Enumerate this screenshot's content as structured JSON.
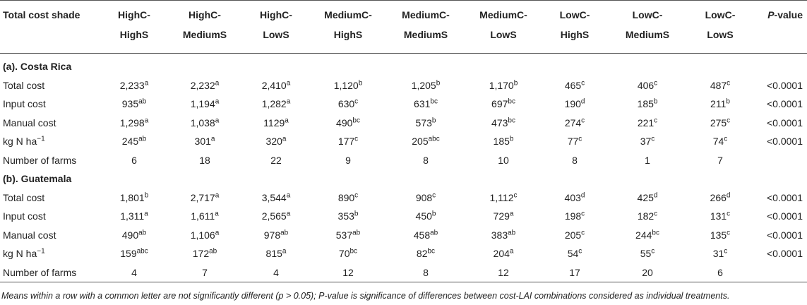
{
  "header": {
    "corner": "Total cost shade",
    "columns": [
      [
        "HighC-",
        "HighS"
      ],
      [
        "HighC-",
        "MediumS"
      ],
      [
        "HighC-",
        "LowS"
      ],
      [
        "MediumC-",
        "HighS"
      ],
      [
        "MediumC-",
        "MediumS"
      ],
      [
        "MediumC-",
        "LowS"
      ],
      [
        "LowC-",
        "HighS"
      ],
      [
        "LowC-",
        "MediumS"
      ],
      [
        "LowC-",
        "LowS"
      ]
    ],
    "pvalue": {
      "italic": "P",
      "text": "-value"
    }
  },
  "sections": [
    {
      "title": "(a). Costa Rica",
      "rows": [
        {
          "label": [
            "Total cost"
          ],
          "cells": [
            [
              "2,233",
              "a"
            ],
            [
              "2,232",
              "a"
            ],
            [
              "2,410",
              "a"
            ],
            [
              "1,120",
              "b"
            ],
            [
              "1,205",
              "b"
            ],
            [
              "1,170",
              "b"
            ],
            [
              "465",
              "c"
            ],
            [
              "406",
              "c"
            ],
            [
              "487",
              "c"
            ]
          ],
          "p": "<0.0001"
        },
        {
          "label": [
            "Input cost"
          ],
          "cells": [
            [
              "935",
              "ab"
            ],
            [
              "1,194",
              "a"
            ],
            [
              "1,282",
              "a"
            ],
            [
              "630",
              "c"
            ],
            [
              "631",
              "bc"
            ],
            [
              "697",
              "bc"
            ],
            [
              "190",
              "d"
            ],
            [
              "185",
              "b"
            ],
            [
              "211",
              "b"
            ]
          ],
          "p": "<0.0001"
        },
        {
          "label": [
            "Manual cost"
          ],
          "cells": [
            [
              "1,298",
              "a"
            ],
            [
              "1,038",
              "a"
            ],
            [
              "1129",
              "a"
            ],
            [
              "490",
              "bc"
            ],
            [
              "573",
              "b"
            ],
            [
              "473",
              "bc"
            ],
            [
              "274",
              "c"
            ],
            [
              "221",
              "c"
            ],
            [
              "275",
              "c"
            ]
          ],
          "p": "<0.0001"
        },
        {
          "label": [
            "kg N ha",
            "−1"
          ],
          "cells": [
            [
              "245",
              "ab"
            ],
            [
              "301",
              "a"
            ],
            [
              "320",
              "a"
            ],
            [
              "177",
              "c"
            ],
            [
              "205",
              "abc"
            ],
            [
              "185",
              "b"
            ],
            [
              "77",
              "c"
            ],
            [
              "37",
              "c"
            ],
            [
              "74",
              "c"
            ]
          ],
          "p": "<0.0001"
        },
        {
          "label": [
            "Number of farms"
          ],
          "cells": [
            [
              "6"
            ],
            [
              "18"
            ],
            [
              "22"
            ],
            [
              "9"
            ],
            [
              "8"
            ],
            [
              "10"
            ],
            [
              "8"
            ],
            [
              "1"
            ],
            [
              "7"
            ]
          ]
        }
      ]
    },
    {
      "title": "(b). Guatemala",
      "rows": [
        {
          "label": [
            "Total cost"
          ],
          "cells": [
            [
              "1,801",
              "b"
            ],
            [
              "2,717",
              "a"
            ],
            [
              "3,544",
              "a"
            ],
            [
              "890",
              "c"
            ],
            [
              "908",
              "c"
            ],
            [
              "1,112",
              "c"
            ],
            [
              "403",
              "d"
            ],
            [
              "425",
              "d"
            ],
            [
              "266",
              "d"
            ]
          ],
          "p": "<0.0001"
        },
        {
          "label": [
            "Input cost"
          ],
          "cells": [
            [
              "1,311",
              "a"
            ],
            [
              "1,611",
              "a"
            ],
            [
              "2,565",
              "a"
            ],
            [
              "353",
              "b"
            ],
            [
              "450",
              "b"
            ],
            [
              "729",
              "a"
            ],
            [
              "198",
              "c"
            ],
            [
              "182",
              "c"
            ],
            [
              "131",
              "c"
            ]
          ],
          "p": "<0.0001"
        },
        {
          "label": [
            "Manual cost"
          ],
          "cells": [
            [
              "490",
              "ab"
            ],
            [
              "1,106",
              "a"
            ],
            [
              "978",
              "ab"
            ],
            [
              "537",
              "ab"
            ],
            [
              "458",
              "ab"
            ],
            [
              "383",
              "ab"
            ],
            [
              "205",
              "c"
            ],
            [
              "244",
              "bc"
            ],
            [
              "135",
              "c"
            ]
          ],
          "p": "<0.0001"
        },
        {
          "label": [
            "kg N ha",
            "−1"
          ],
          "cells": [
            [
              "159",
              "abc"
            ],
            [
              "172",
              "ab"
            ],
            [
              "815",
              "a"
            ],
            [
              "70",
              "bc"
            ],
            [
              "82",
              "bc"
            ],
            [
              "204",
              "a"
            ],
            [
              "54",
              "c"
            ],
            [
              "55",
              "c"
            ],
            [
              "31",
              "c"
            ]
          ],
          "p": "<0.0001"
        },
        {
          "label": [
            "Number of farms"
          ],
          "cells": [
            [
              "4"
            ],
            [
              "7"
            ],
            [
              "4"
            ],
            [
              "12"
            ],
            [
              "8"
            ],
            [
              "12"
            ],
            [
              "17"
            ],
            [
              "20"
            ],
            [
              "6"
            ]
          ]
        }
      ]
    }
  ],
  "footnote": "Means within a row with a common letter are not significantly different (p > 0.05); P-value is significance of differences between cost-LAI combinations considered as individual treatments."
}
